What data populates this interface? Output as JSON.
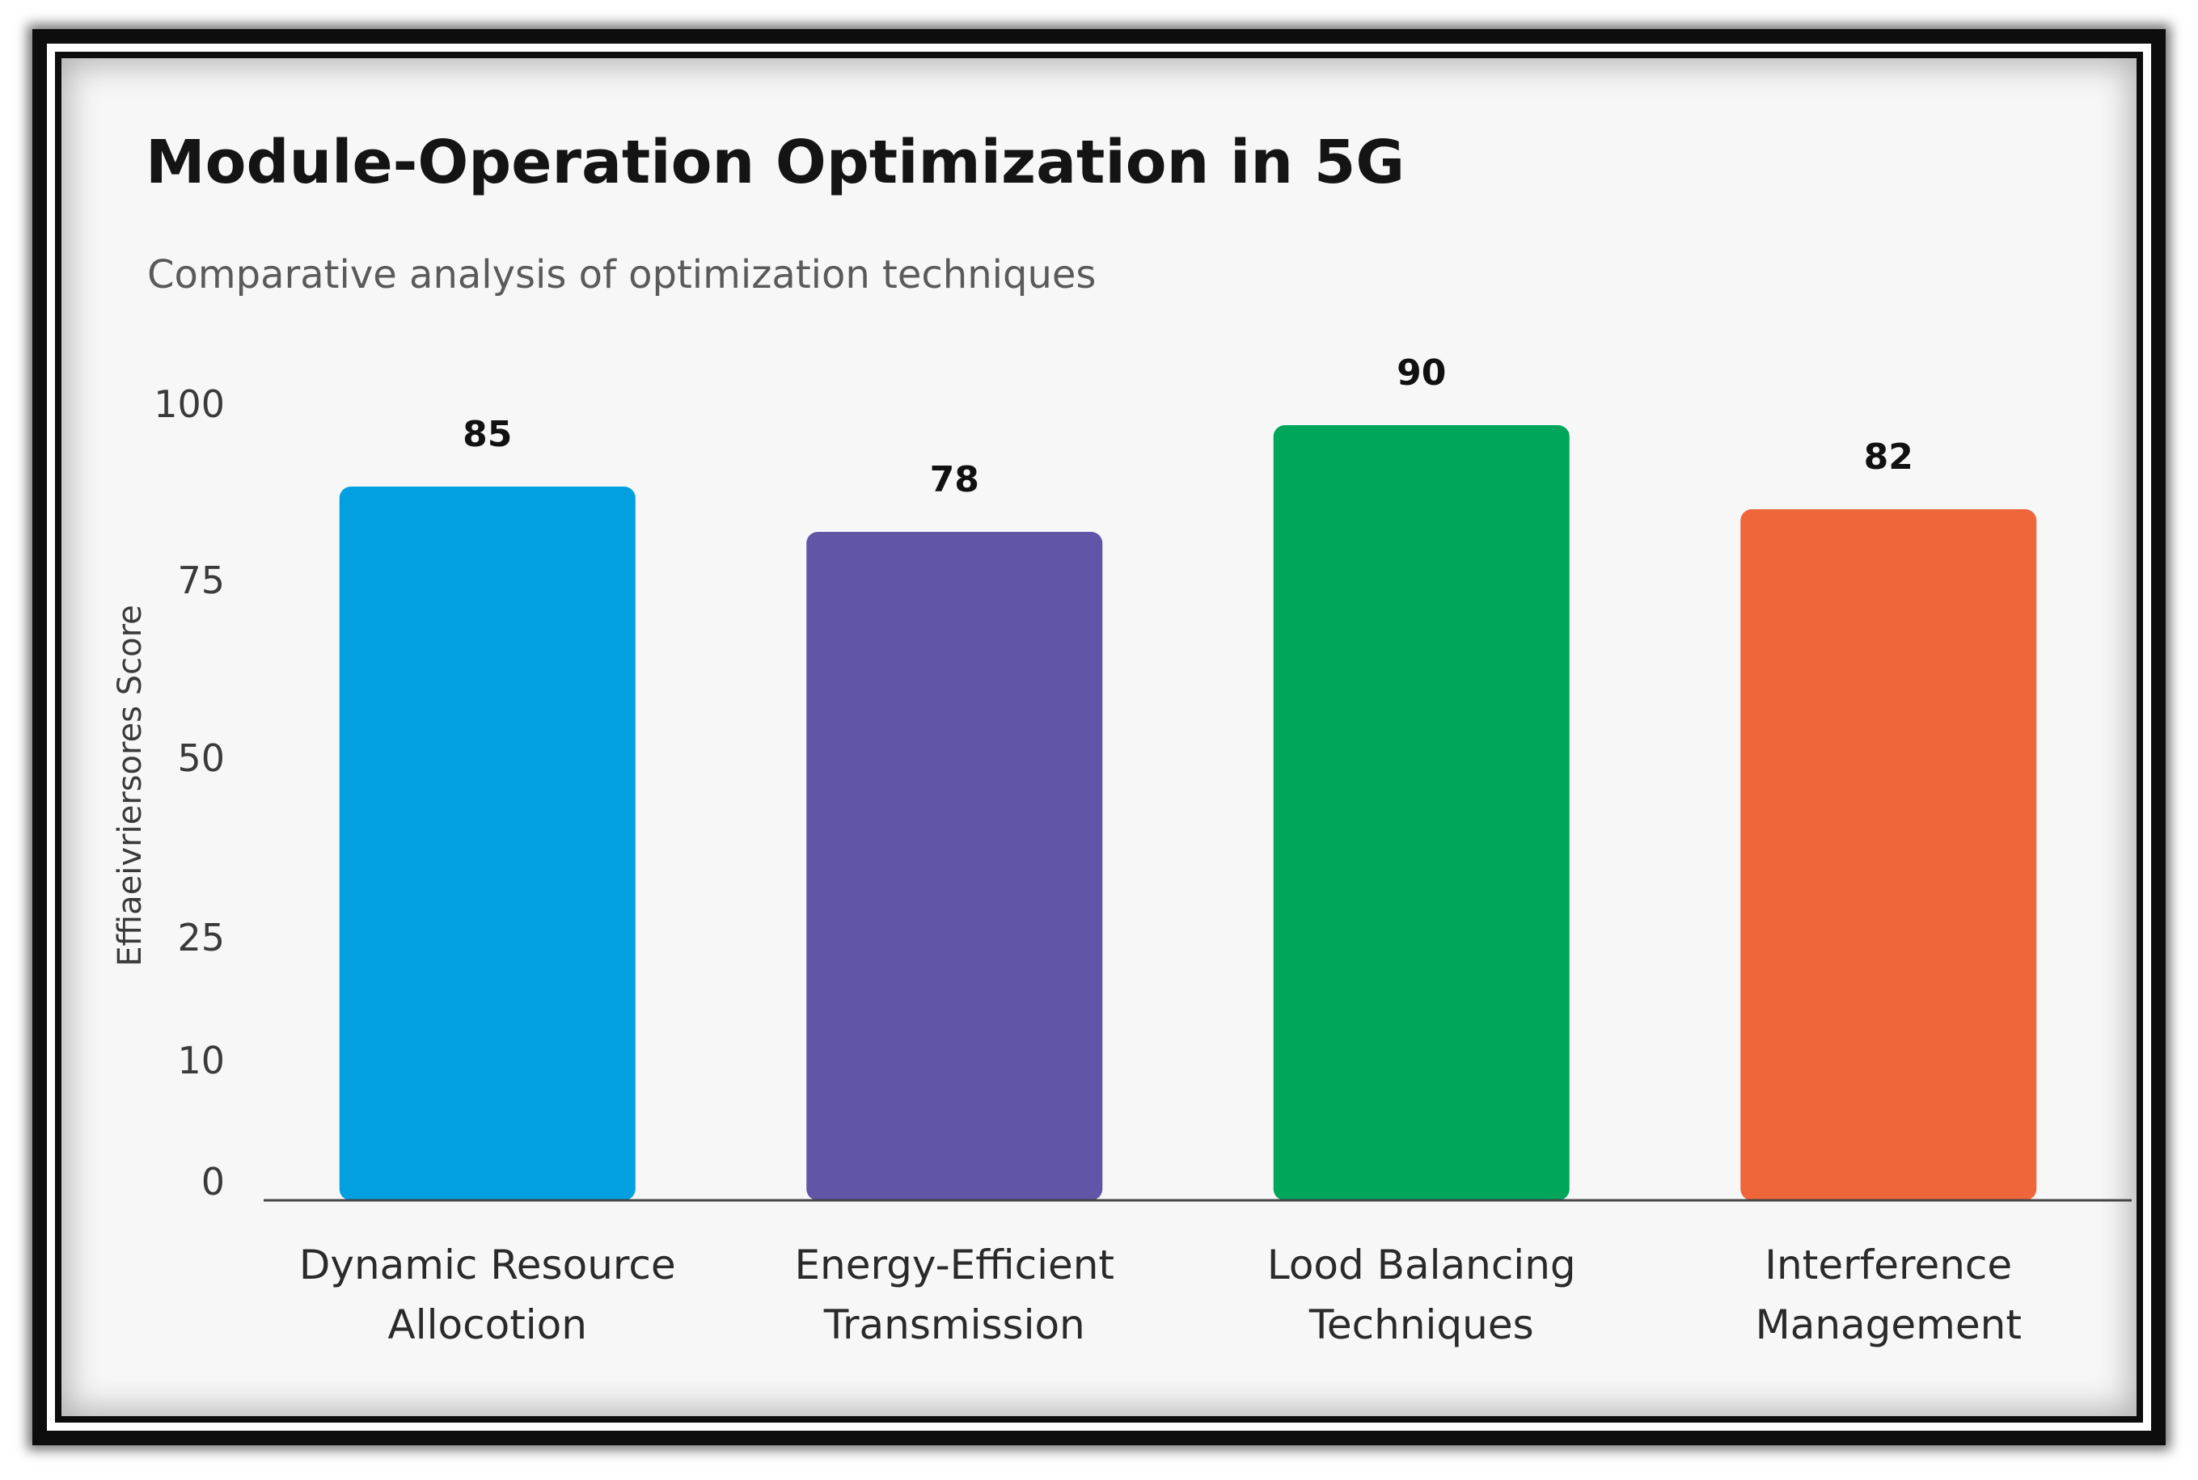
{
  "chart_data": {
    "type": "bar",
    "title": "Module-Operation Optimization in 5G",
    "subtitle": "Comparative analysis of optimization techniques",
    "xlabel": "",
    "ylabel": "Effiaeivriersores Score",
    "y_ticks": [
      "0",
      "10",
      "25",
      "50",
      "75",
      "100"
    ],
    "ylim": [
      0,
      100
    ],
    "grid": false,
    "categories": [
      [
        "Dynamic Resource",
        "Allocotion"
      ],
      [
        "Energy-Efficient",
        "Transmission"
      ],
      [
        "Lood Balancing",
        "Techniques"
      ],
      [
        "Interference",
        "Management"
      ]
    ],
    "values": [
      85,
      78,
      90,
      82
    ],
    "colors": [
      "#02a0e0",
      "#6055a6",
      "#00a65a",
      "#f0663b"
    ]
  }
}
